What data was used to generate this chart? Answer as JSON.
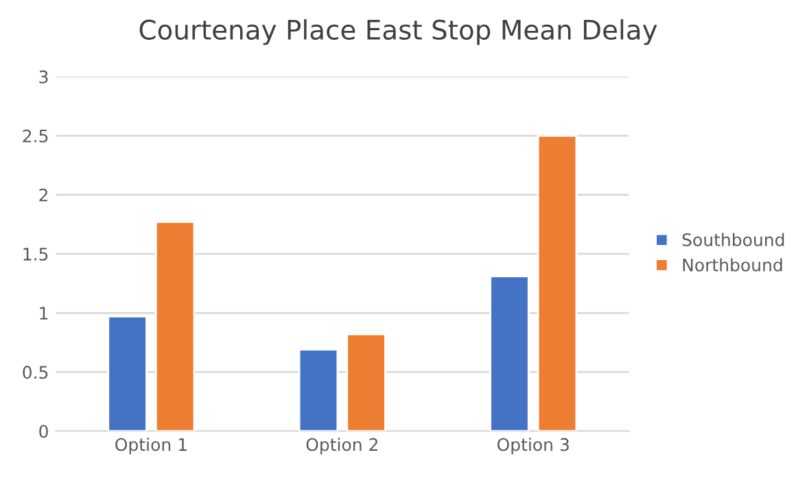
{
  "chart_data": {
    "type": "bar",
    "title": "Courtenay Place East Stop Mean Delay",
    "categories": [
      "Option 1",
      "Option 2",
      "Option 3"
    ],
    "series": [
      {
        "name": "Southbound",
        "color": "#4472c4",
        "values": [
          0.97,
          0.69,
          1.31
        ]
      },
      {
        "name": "Northbound",
        "color": "#ed7d31",
        "values": [
          1.77,
          0.82,
          2.5
        ]
      }
    ],
    "ylim": [
      0,
      3
    ],
    "yticks": [
      0,
      0.5,
      1,
      1.5,
      2,
      2.5,
      3
    ],
    "grid": "y",
    "legend": "right"
  }
}
